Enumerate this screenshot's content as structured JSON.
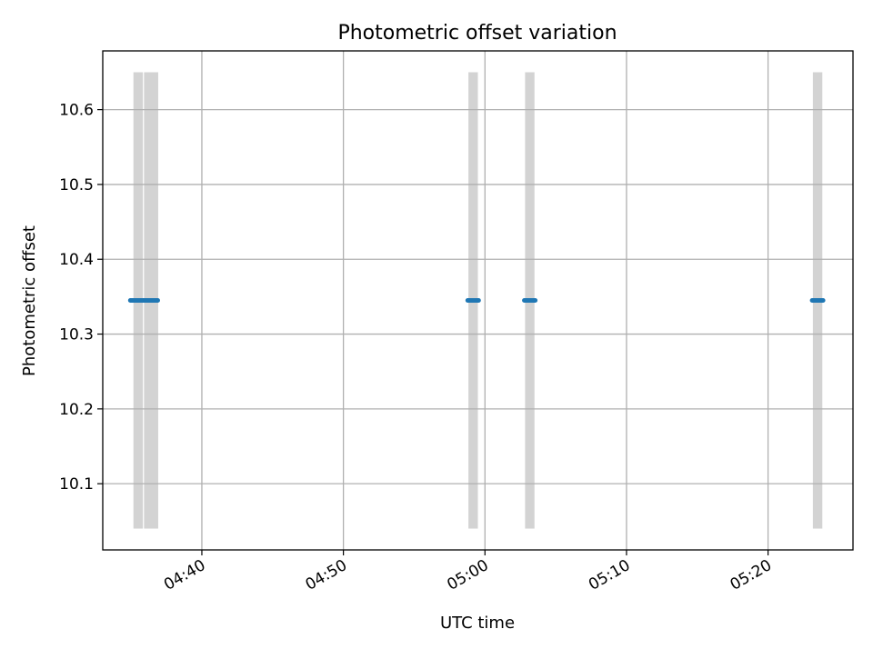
{
  "chart_data": {
    "type": "scatter",
    "title": "Photometric offset variation",
    "xlabel": "UTC time",
    "ylabel": "Photometric offset",
    "x_axis_kind": "time",
    "xlim": [
      "04:33:00",
      "05:26:00"
    ],
    "ylim": [
      10.0115,
      10.6785
    ],
    "xticks": [
      "04:40",
      "04:50",
      "05:00",
      "05:10",
      "05:20"
    ],
    "yticks": [
      10.1,
      10.2,
      10.3,
      10.4,
      10.5,
      10.6
    ],
    "ytick_labels": [
      "10.1",
      "10.2",
      "10.3",
      "10.4",
      "10.5",
      "10.6"
    ],
    "grid": true,
    "legend": "none",
    "series": [
      {
        "values": [
          {
            "x": "04:35:20",
            "y": 10.345
          },
          {
            "x": "04:35:50",
            "y": 10.345
          },
          {
            "x": "04:36:30",
            "y": 10.345
          },
          {
            "x": "04:59:10",
            "y": 10.345
          },
          {
            "x": "05:03:10",
            "y": 10.345
          },
          {
            "x": "05:23:30",
            "y": 10.345
          }
        ]
      }
    ],
    "shaded_spans": [
      {
        "x_start": "04:35:10",
        "x_end": "04:35:50",
        "y_start": 10.04,
        "y_end": 10.65
      },
      {
        "x_start": "04:35:55",
        "x_end": "04:36:55",
        "y_start": 10.04,
        "y_end": 10.65
      },
      {
        "x_start": "04:58:50",
        "x_end": "04:59:30",
        "y_start": 10.04,
        "y_end": 10.65
      },
      {
        "x_start": "05:02:50",
        "x_end": "05:03:30",
        "y_start": 10.04,
        "y_end": 10.65
      },
      {
        "x_start": "05:23:10",
        "x_end": "05:23:50",
        "y_start": 10.04,
        "y_end": 10.65
      }
    ],
    "colors": {
      "points": "#1f77b4",
      "spans": "#d3d3d3",
      "grid": "#b0b0b0",
      "axes": "#000000"
    }
  }
}
